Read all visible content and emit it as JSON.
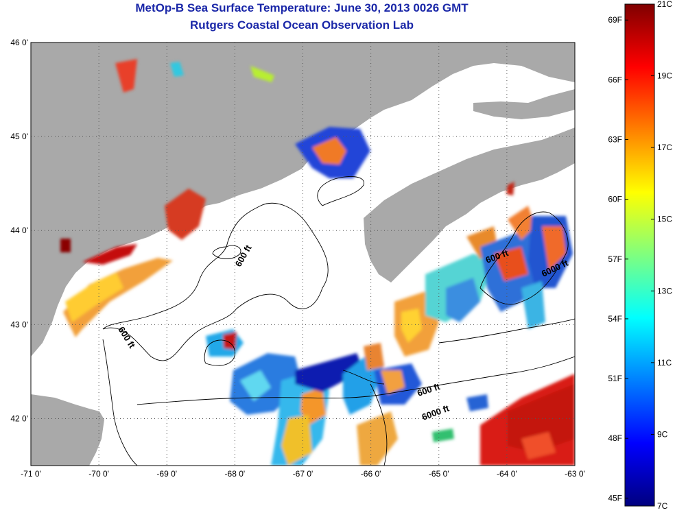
{
  "title": "MetOp-B Sea Surface Temperature:  June 30, 2013 0026 GMT",
  "subtitle": "Rutgers Coastal Ocean Observation Lab",
  "map": {
    "lon_ticks": [
      "-71 0'",
      "-70 0'",
      "-69 0'",
      "-68 0'",
      "-67 0'",
      "-66 0'",
      "-65 0'",
      "-64 0'",
      "-63 0'"
    ],
    "lat_ticks": [
      "46 0'",
      "45 0'",
      "44 0'",
      "43 0'",
      "42 0'"
    ],
    "lon_range": [
      -71,
      -63
    ],
    "lat_range": [
      41.5,
      46
    ],
    "land_color": "#a9a9a9",
    "ocean_color": "#ffffff",
    "contour_labels": [
      "600 ft",
      "600 ft",
      "600 ft",
      "600 ft",
      "6000 ft"
    ]
  },
  "colorbar": {
    "fahrenheit_ticks": [
      "69F",
      "66F",
      "63F",
      "60F",
      "57F",
      "54F",
      "51F",
      "48F",
      "45F"
    ],
    "celsius_ticks": [
      "21C",
      "19C",
      "17C",
      "15C",
      "13C",
      "11C",
      "9C",
      "7C"
    ],
    "range_c": [
      7,
      21
    ],
    "colormap": "jet"
  }
}
